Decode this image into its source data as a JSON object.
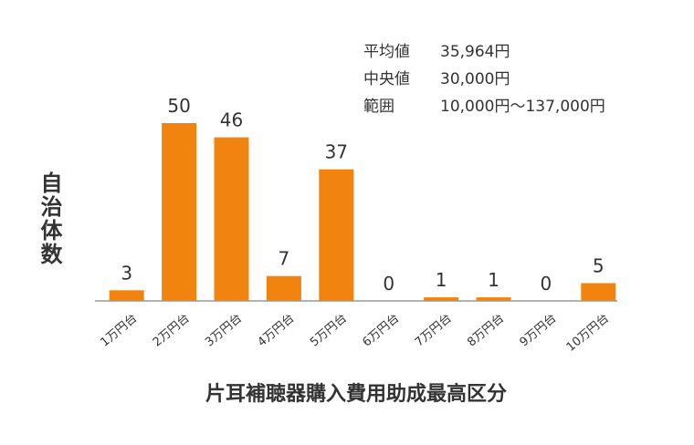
{
  "stats": {
    "mean_label": "平均値",
    "mean_value": "35,964円",
    "median_label": "中央値",
    "median_value": "30,000円",
    "range_label": "範囲",
    "range_value": "10,000円〜137,000円"
  },
  "chart_data": {
    "type": "bar",
    "categories": [
      "1万円台",
      "2万円台",
      "3万円台",
      "4万円台",
      "5万円台",
      "6万円台",
      "7万円台",
      "8万円台",
      "9万円台",
      "10万円台"
    ],
    "values": [
      3,
      50,
      46,
      7,
      37,
      0,
      1,
      1,
      0,
      5
    ],
    "data_labels": [
      "3",
      "50",
      "46",
      "7",
      "37",
      "0",
      "1",
      "1",
      "0",
      "5"
    ],
    "xlabel": "片耳補聴器購入費用助成最高区分",
    "ylabel": "自治体数",
    "ylim": [
      0,
      50
    ],
    "bar_color": "#f0840e",
    "axis_color": "#999999",
    "grid": false
  }
}
